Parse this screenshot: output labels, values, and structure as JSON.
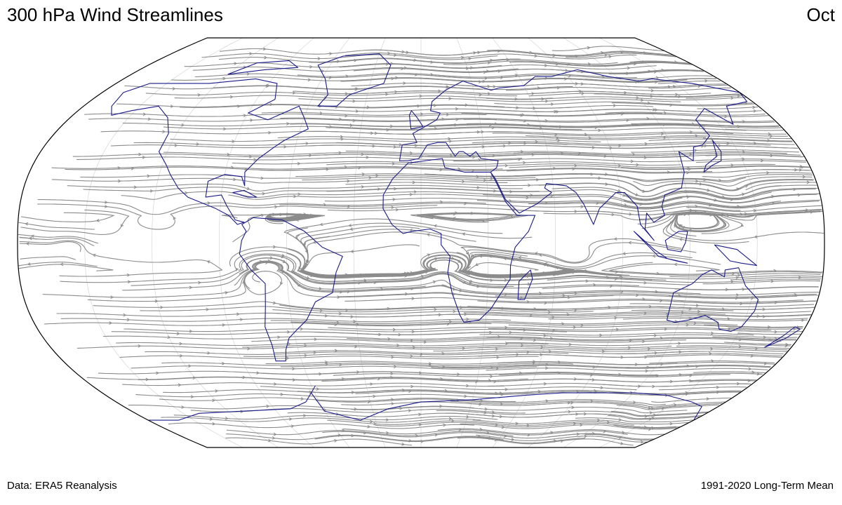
{
  "header": {
    "title": "300 hPa Wind Streamlines",
    "month": "Oct"
  },
  "footer": {
    "source": "Data: ERA5 Reanalysis",
    "period": "1991-2020 Long-Term Mean"
  },
  "map": {
    "projection": "Robinson",
    "streamline_color": "#8c8c8c",
    "coastline_color": "#1a1a8c",
    "border_color": "#000000",
    "gridlines": true
  }
}
